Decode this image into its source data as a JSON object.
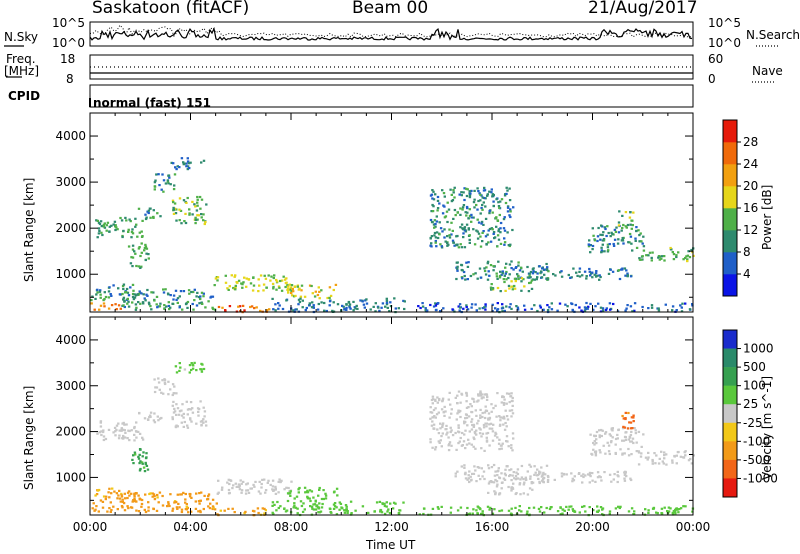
{
  "header": {
    "station": "Saskatoon (fitACF)",
    "beam": "Beam 00",
    "date": "21/Aug/2017"
  },
  "top_panels": {
    "nsky_label": "N.Sky",
    "nsky_ticks": [
      "10^5",
      "10^0"
    ],
    "nsearch_label": "N.Search",
    "nsearch_ticks": [
      "10^5",
      "10^0"
    ],
    "freq_label": "Freq.",
    "freq_unit": "[MHz]",
    "freq_ticks": [
      "18",
      "8"
    ],
    "nave_label": "Nave",
    "nave_ticks": [
      "60",
      "0"
    ],
    "cpid_label": "CPID",
    "cpid_text": "normal (fast) 151"
  },
  "chart_data": [
    {
      "type": "heatmap",
      "title": "Power",
      "xlabel": "Time UT",
      "ylabel": "Slant Range [km]",
      "colorbar_label": "Power [dB]",
      "xlim": [
        0,
        24
      ],
      "ylim": [
        180,
        4500
      ],
      "x_ticks": [
        "00:00",
        "04:00",
        "08:00",
        "12:00",
        "16:00",
        "20:00",
        "00:00"
      ],
      "y_ticks": [
        "1000",
        "2000",
        "3000",
        "4000"
      ],
      "colorbar_ticks": [
        "4",
        "8",
        "12",
        "16",
        "20",
        "24",
        "28"
      ],
      "colorbar_colors": [
        "#0a14e6",
        "#1f5fc8",
        "#2e8a6e",
        "#4fb048",
        "#e6d61a",
        "#f2a010",
        "#f06a0a",
        "#e61a0a"
      ],
      "regions": [
        {
          "t0": 0.2,
          "t1": 2.1,
          "r0": 1800,
          "r1": 2250,
          "level": 12
        },
        {
          "t0": 1.8,
          "t1": 2.8,
          "r0": 2200,
          "r1": 2450,
          "level": 10
        },
        {
          "t0": 2.5,
          "t1": 3.4,
          "r0": 2800,
          "r1": 3200,
          "level": 10
        },
        {
          "t0": 3.2,
          "t1": 4.6,
          "r0": 2100,
          "r1": 2700,
          "level": 14
        },
        {
          "t0": 3.2,
          "t1": 4.5,
          "r0": 3300,
          "r1": 3550,
          "level": 8
        },
        {
          "t0": 1.5,
          "t1": 2.3,
          "r0": 1150,
          "r1": 1700,
          "level": 12
        },
        {
          "t0": 0.0,
          "t1": 1.8,
          "r0": 450,
          "r1": 800,
          "level": 10
        },
        {
          "t0": 0.0,
          "t1": 1.2,
          "r0": 250,
          "r1": 400,
          "level": 24
        },
        {
          "t0": 1.2,
          "t1": 5.0,
          "r0": 250,
          "r1": 700,
          "level": 10
        },
        {
          "t0": 4.8,
          "t1": 8.0,
          "r0": 650,
          "r1": 1000,
          "level": 16
        },
        {
          "t0": 7.8,
          "t1": 9.8,
          "r0": 500,
          "r1": 800,
          "level": 18
        },
        {
          "t0": 5.0,
          "t1": 7.2,
          "r0": 200,
          "r1": 350,
          "level": 26
        },
        {
          "t0": 7.2,
          "t1": 12.5,
          "r0": 200,
          "r1": 500,
          "level": 8
        },
        {
          "t0": 13.5,
          "t1": 16.8,
          "r0": 1600,
          "r1": 2900,
          "level": 10
        },
        {
          "t0": 14.5,
          "t1": 18.2,
          "r0": 900,
          "r1": 1300,
          "level": 9
        },
        {
          "t0": 15.8,
          "t1": 17.6,
          "r0": 650,
          "r1": 1000,
          "level": 14
        },
        {
          "t0": 17.5,
          "t1": 21.5,
          "r0": 900,
          "r1": 1150,
          "level": 9
        },
        {
          "t0": 19.8,
          "t1": 22.0,
          "r0": 1500,
          "r1": 2100,
          "level": 10
        },
        {
          "t0": 21.0,
          "t1": 21.6,
          "r0": 2000,
          "r1": 2450,
          "level": 14
        },
        {
          "t0": 21.8,
          "t1": 24.0,
          "r0": 1300,
          "r1": 1600,
          "level": 13
        },
        {
          "t0": 13.0,
          "t1": 24.0,
          "r0": 200,
          "r1": 400,
          "level": 6
        }
      ]
    },
    {
      "type": "heatmap",
      "title": "Velocity",
      "xlabel": "Time UT",
      "ylabel": "Slant Range [km]",
      "colorbar_label": "Velocity [m s^-1]",
      "xlim": [
        0,
        24
      ],
      "ylim": [
        180,
        4500
      ],
      "x_ticks": [
        "00:00",
        "04:00",
        "08:00",
        "12:00",
        "16:00",
        "20:00",
        "00:00"
      ],
      "y_ticks": [
        "1000",
        "2000",
        "3000",
        "4000"
      ],
      "colorbar_ticks": [
        "1000",
        "500",
        "100",
        "25",
        "-25",
        "-100",
        "-500",
        "-1000"
      ],
      "colorbar_colors": [
        "#1a2ccc",
        "#2a8a6a",
        "#36a050",
        "#5ac83c",
        "#c8c8c8",
        "#f2c818",
        "#f29a18",
        "#f26618",
        "#e61a10"
      ],
      "regions": [
        {
          "t0": 0.2,
          "t1": 2.1,
          "r0": 1800,
          "r1": 2250,
          "level": 0
        },
        {
          "t0": 1.8,
          "t1": 2.8,
          "r0": 2200,
          "r1": 2450,
          "level": 0
        },
        {
          "t0": 2.5,
          "t1": 3.4,
          "r0": 2800,
          "r1": 3200,
          "level": 0
        },
        {
          "t0": 3.2,
          "t1": 4.6,
          "r0": 2100,
          "r1": 2700,
          "level": 0
        },
        {
          "t0": 3.2,
          "t1": 4.5,
          "r0": 3300,
          "r1": 3550,
          "level": 40
        },
        {
          "t0": 1.5,
          "t1": 2.3,
          "r0": 1150,
          "r1": 1700,
          "level": 150
        },
        {
          "t0": 0.0,
          "t1": 1.8,
          "r0": 450,
          "r1": 800,
          "level": -150
        },
        {
          "t0": 0.0,
          "t1": 1.2,
          "r0": 250,
          "r1": 400,
          "level": -300
        },
        {
          "t0": 1.2,
          "t1": 5.0,
          "r0": 250,
          "r1": 700,
          "level": -150
        },
        {
          "t0": 4.8,
          "t1": 8.0,
          "r0": 650,
          "r1": 1000,
          "level": 0
        },
        {
          "t0": 7.8,
          "t1": 9.8,
          "r0": 500,
          "r1": 800,
          "level": 60
        },
        {
          "t0": 5.0,
          "t1": 7.2,
          "r0": 200,
          "r1": 350,
          "level": -120
        },
        {
          "t0": 7.2,
          "t1": 12.5,
          "r0": 200,
          "r1": 500,
          "level": 50
        },
        {
          "t0": 13.5,
          "t1": 16.8,
          "r0": 1600,
          "r1": 2900,
          "level": 0
        },
        {
          "t0": 14.5,
          "t1": 18.2,
          "r0": 900,
          "r1": 1300,
          "level": 0
        },
        {
          "t0": 15.8,
          "t1": 17.6,
          "r0": 650,
          "r1": 1000,
          "level": 0
        },
        {
          "t0": 17.5,
          "t1": 21.5,
          "r0": 900,
          "r1": 1150,
          "level": 0
        },
        {
          "t0": 19.8,
          "t1": 22.0,
          "r0": 1500,
          "r1": 2100,
          "level": 0
        },
        {
          "t0": 21.0,
          "t1": 21.6,
          "r0": 2000,
          "r1": 2450,
          "level": -700
        },
        {
          "t0": 21.8,
          "t1": 24.0,
          "r0": 1300,
          "r1": 1600,
          "level": 0
        },
        {
          "t0": 13.0,
          "t1": 24.0,
          "r0": 200,
          "r1": 400,
          "level": 60
        }
      ]
    }
  ]
}
